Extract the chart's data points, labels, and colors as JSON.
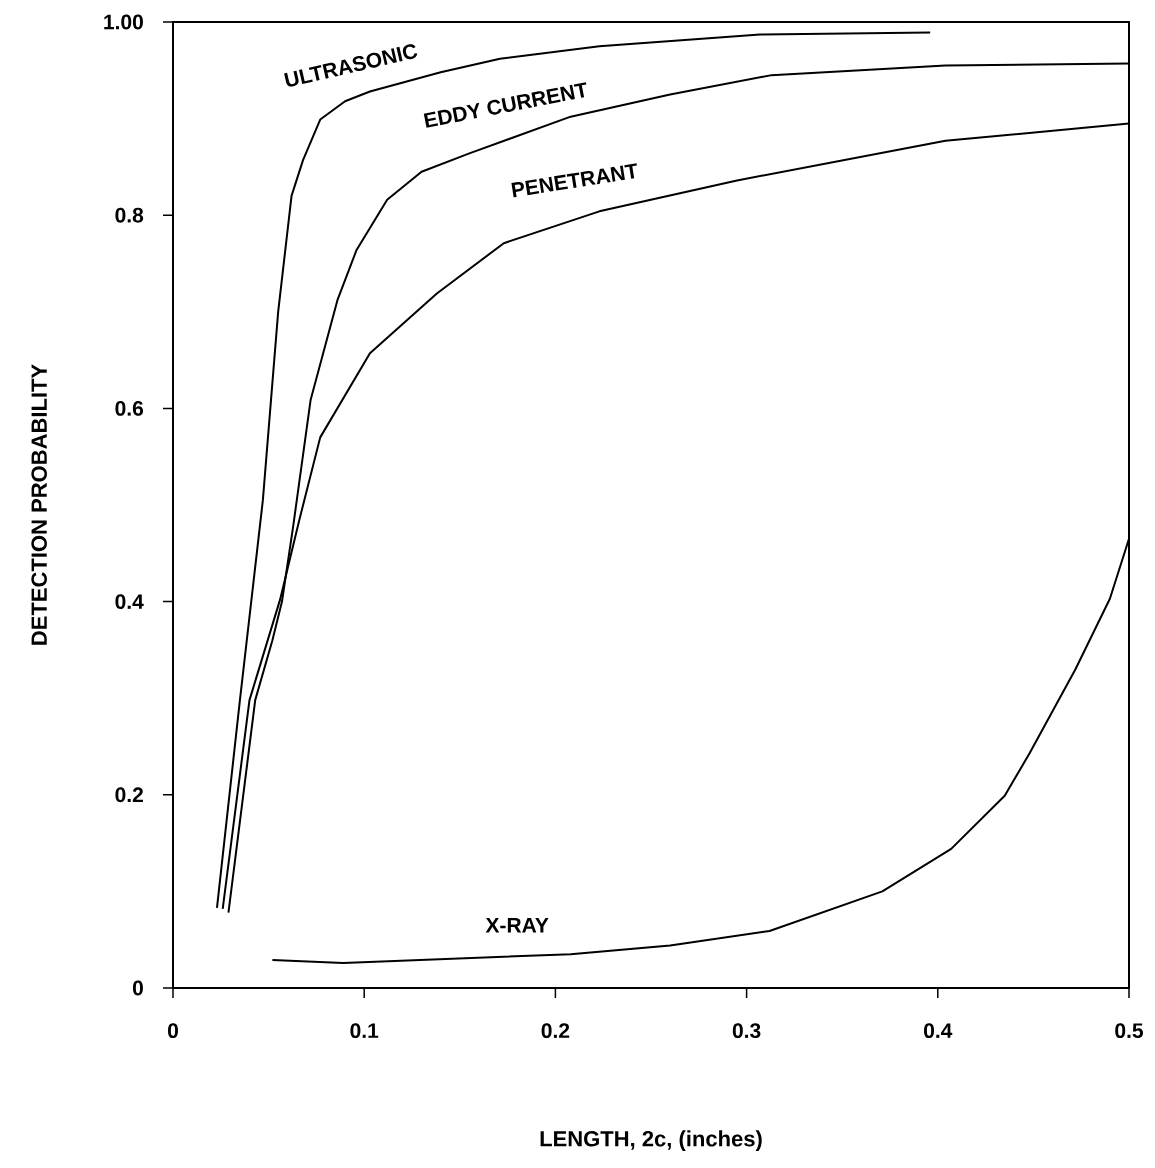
{
  "chart_data": {
    "type": "line",
    "xlabel": "LENGTH, 2c, (inches)",
    "ylabel": "DETECTION PROBABILITY",
    "xlim": [
      0,
      0.5
    ],
    "ylim": [
      0,
      1
    ],
    "xticks": [
      0,
      0.1,
      0.2,
      0.3,
      0.4,
      0.5
    ],
    "yticks": [
      0,
      0.2,
      0.4,
      0.6,
      0.8,
      {
        "value": 1,
        "label": "1.00"
      }
    ],
    "line_style": "solid",
    "marker": "none",
    "series": [
      {
        "name": "ULTRASONIC",
        "color": "#000000",
        "x": [
          0.023,
          0.035,
          0.047,
          0.055,
          0.062,
          0.068,
          0.077,
          0.09,
          0.103,
          0.14,
          0.171,
          0.223,
          0.307,
          0.396
        ],
        "values": [
          0.083,
          0.298,
          0.505,
          0.7,
          0.82,
          0.857,
          0.899,
          0.918,
          0.928,
          0.948,
          0.962,
          0.975,
          0.987,
          0.989
        ]
      },
      {
        "name": "EDDY CURRENT",
        "color": "#000000",
        "x": [
          0.029,
          0.043,
          0.052,
          0.057,
          0.063,
          0.072,
          0.086,
          0.096,
          0.112,
          0.13,
          0.155,
          0.208,
          0.26,
          0.313,
          0.404,
          0.5
        ],
        "values": [
          0.078,
          0.298,
          0.36,
          0.4,
          0.48,
          0.609,
          0.712,
          0.764,
          0.816,
          0.845,
          0.864,
          0.902,
          0.925,
          0.945,
          0.955,
          0.957
        ]
      },
      {
        "name": "PENETRANT",
        "color": "#000000",
        "x": [
          0.026,
          0.04,
          0.056,
          0.066,
          0.077,
          0.103,
          0.138,
          0.173,
          0.223,
          0.295,
          0.404,
          0.5
        ],
        "values": [
          0.082,
          0.298,
          0.402,
          0.484,
          0.57,
          0.657,
          0.719,
          0.771,
          0.804,
          0.836,
          0.877,
          0.895
        ]
      },
      {
        "name": "X-RAY",
        "color": "#000000",
        "x": [
          0.052,
          0.089,
          0.208,
          0.26,
          0.312,
          0.371,
          0.407,
          0.435,
          0.448,
          0.472,
          0.49,
          0.5
        ],
        "values": [
          0.029,
          0.026,
          0.035,
          0.044,
          0.059,
          0.1,
          0.144,
          0.199,
          0.243,
          0.33,
          0.403,
          0.465
        ]
      }
    ]
  }
}
